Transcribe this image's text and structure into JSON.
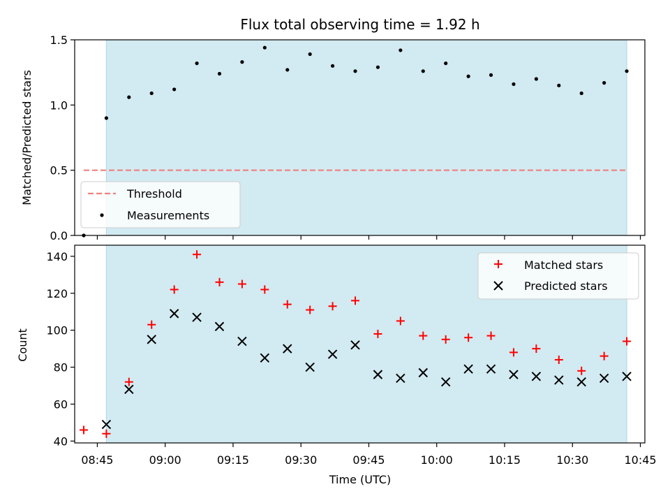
{
  "chart_data": [
    {
      "type": "scatter",
      "title": "Flux total observing time = 1.92 h",
      "ylabel": "Matched/Predicted stars",
      "xlim": [
        "08:40",
        "10:46"
      ],
      "ylim": [
        0,
        1.5
      ],
      "yticks": [
        "0.0",
        "0.5",
        "1.0",
        "1.5"
      ],
      "x": [
        "08:42",
        "08:47",
        "08:52",
        "08:57",
        "09:02",
        "09:07",
        "09:12",
        "09:17",
        "09:22",
        "09:27",
        "09:32",
        "09:37",
        "09:42",
        "09:47",
        "09:52",
        "09:57",
        "10:02",
        "10:07",
        "10:12",
        "10:17",
        "10:22",
        "10:27",
        "10:32",
        "10:37",
        "10:42"
      ],
      "series": [
        {
          "name": "Measurements",
          "color": "#000000",
          "marker": "dot",
          "values": [
            0.0,
            0.9,
            1.06,
            1.09,
            1.12,
            1.32,
            1.24,
            1.33,
            1.44,
            1.27,
            1.39,
            1.3,
            1.26,
            1.29,
            1.42,
            1.26,
            1.32,
            1.22,
            1.23,
            1.16,
            1.2,
            1.15,
            1.09,
            1.17,
            1.26
          ]
        }
      ],
      "threshold": {
        "name": "Threshold",
        "value": 0.5,
        "color": "#f08080",
        "x_start": "08:42",
        "x_end": "10:42"
      },
      "observing_window": {
        "start": "08:47",
        "end": "10:42",
        "color": "#add8e6"
      },
      "legend": "lower-left"
    },
    {
      "type": "scatter",
      "xlabel": "Time (UTC)",
      "ylabel": "Count",
      "xlim": [
        "08:40",
        "10:46"
      ],
      "ylim": [
        39,
        146
      ],
      "yticks": [
        "40",
        "60",
        "80",
        "100",
        "120",
        "140"
      ],
      "xticks": [
        "08:45",
        "09:00",
        "09:15",
        "09:30",
        "09:45",
        "10:00",
        "10:15",
        "10:30",
        "10:45"
      ],
      "x": [
        "08:42",
        "08:47",
        "08:52",
        "08:57",
        "09:02",
        "09:07",
        "09:12",
        "09:17",
        "09:22",
        "09:27",
        "09:32",
        "09:37",
        "09:42",
        "09:47",
        "09:52",
        "09:57",
        "10:02",
        "10:07",
        "10:12",
        "10:17",
        "10:22",
        "10:27",
        "10:32",
        "10:37",
        "10:42"
      ],
      "series": [
        {
          "name": "Matched stars",
          "color": "#ff0000",
          "marker": "plus",
          "values": [
            46,
            44,
            72,
            103,
            122,
            141,
            126,
            125,
            122,
            114,
            111,
            113,
            116,
            98,
            105,
            97,
            95,
            96,
            97,
            88,
            90,
            84,
            78,
            86,
            94
          ]
        },
        {
          "name": "Predicted stars",
          "color": "#000000",
          "marker": "x",
          "values": [
            null,
            49,
            68,
            95,
            109,
            107,
            102,
            94,
            85,
            90,
            80,
            87,
            92,
            76,
            74,
            77,
            72,
            79,
            79,
            76,
            75,
            73,
            72,
            74,
            75
          ]
        }
      ],
      "observing_window": {
        "start": "08:47",
        "end": "10:42",
        "color": "#add8e6"
      },
      "legend": "top-right"
    }
  ]
}
